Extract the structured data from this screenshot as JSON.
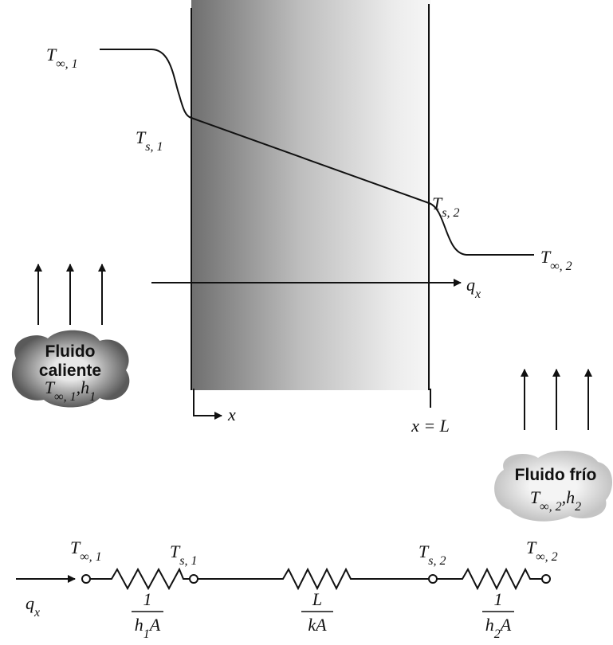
{
  "wall": {
    "temperatures": [
      {
        "symbol": "T",
        "sub": "∞, 1"
      },
      {
        "symbol": "T",
        "sub": "s, 1"
      },
      {
        "symbol": "T",
        "sub": "s, 2"
      },
      {
        "symbol": "T",
        "sub": "∞, 2"
      }
    ],
    "heat_flux": {
      "symbol": "q",
      "sub": "x"
    },
    "x_axis": "x",
    "length": "x = L"
  },
  "hot_fluid": {
    "line1": "Fluido",
    "line2": "caliente",
    "params": {
      "symbol": "T",
      "sub": "∞, 1",
      "separator": ",",
      "h": "h",
      "h_sub": "1"
    }
  },
  "cold_fluid": {
    "name": "Fluido frío",
    "params": {
      "symbol": "T",
      "sub": "∞, 2",
      "separator": ",",
      "h": "h",
      "h_sub": "2"
    }
  },
  "circuit": {
    "heat_flux": {
      "symbol": "q",
      "sub": "x"
    },
    "nodes": [
      {
        "symbol": "T",
        "sub": "∞, 1"
      },
      {
        "symbol": "T",
        "sub": "s, 1"
      },
      {
        "symbol": "T",
        "sub": "s, 2"
      },
      {
        "symbol": "T",
        "sub": "∞, 2"
      }
    ],
    "resistances": [
      {
        "numerator": "1",
        "denominator": {
          "a": "h",
          "sub": "1",
          "b": "A"
        }
      },
      {
        "numerator": "L",
        "denominator": {
          "a": "kA"
        }
      },
      {
        "numerator": "1",
        "denominator": {
          "a": "h",
          "sub": "2",
          "b": "A"
        }
      }
    ]
  }
}
